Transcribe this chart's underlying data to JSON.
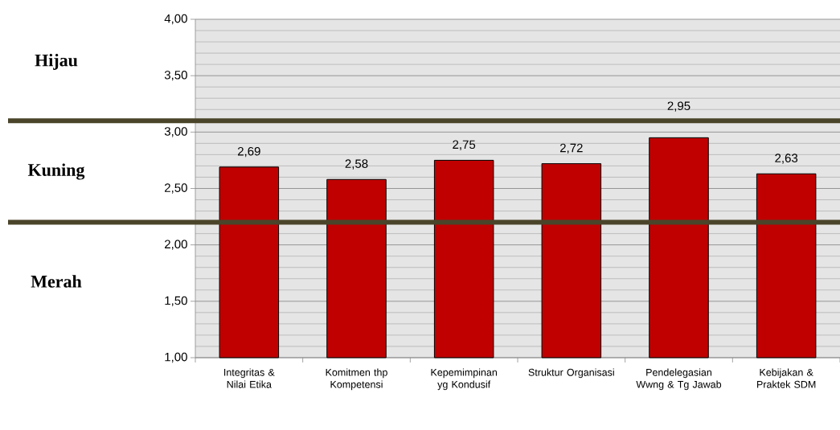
{
  "chart_data": {
    "type": "bar",
    "categories": [
      "Integritas & Nilai Etika",
      "Komitmen thp Kompetensi",
      "Kepemimpinan yg Kondusif",
      "Struktur Organisasi",
      "Pendelegasian Wwng & Tg Jawab",
      "Kebijakan & Praktek SDM"
    ],
    "values": [
      2.69,
      2.58,
      2.75,
      2.72,
      2.95,
      2.63
    ],
    "value_labels": [
      "2,69",
      "2,58",
      "2,75",
      "2,72",
      "2,95",
      "2,63"
    ],
    "color": "#c00000",
    "ylim": [
      1,
      4
    ],
    "yticks": [
      {
        "value": 1,
        "label": "1,00"
      },
      {
        "value": 1.5,
        "label": "1,50"
      },
      {
        "value": 2,
        "label": "2,00"
      },
      {
        "value": 2.5,
        "label": "2,50"
      },
      {
        "value": 3,
        "label": "3,00"
      },
      {
        "value": 3.5,
        "label": "3,50"
      },
      {
        "value": 4,
        "label": "4,00"
      }
    ],
    "grid": "y",
    "ref_lines": [
      {
        "axis": "y",
        "value": 3.1,
        "color": "#4a442a"
      },
      {
        "axis": "y",
        "value": 2.2,
        "color": "#4a442a"
      }
    ],
    "annotations": [
      "Hijau",
      "Kuning",
      "Merah"
    ]
  }
}
